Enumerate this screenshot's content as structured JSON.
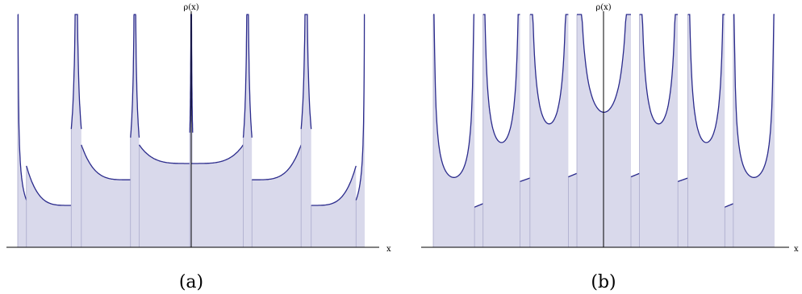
{
  "chart_data": [
    {
      "type": "area",
      "caption": "(a)",
      "xlabel": "x",
      "ylabel": "ρ(x)",
      "xlim": [
        -6.25,
        6.25
      ],
      "ylim": [
        0,
        10
      ],
      "grid": false,
      "fill_color": "#d9d9eb",
      "line_color": "#2b2b8c",
      "band_divider_color": "#aaaacc",
      "bands": [
        {
          "x0": -6.0,
          "x1": -5.7,
          "shape": "edge-spike",
          "apex": 5.9
        },
        {
          "x0": -5.7,
          "x1": -4.15,
          "shape": "u",
          "left": 3.5,
          "min": 1.8
        },
        {
          "x0": -4.15,
          "x1": -3.8,
          "shape": "cusp",
          "apex": 9.7
        },
        {
          "x0": -3.8,
          "x1": -2.1,
          "shape": "u",
          "left": 4.4,
          "min": 2.9
        },
        {
          "x0": -2.1,
          "x1": -1.8,
          "shape": "cusp",
          "apex": 9.0
        },
        {
          "x0": -1.8,
          "x1": 0.0,
          "shape": "u",
          "left": 4.4,
          "min": 3.6
        },
        {
          "x0": -0.05,
          "x1": 0.05,
          "shape": "cusp",
          "apex": 9.4
        },
        {
          "x0": 0.0,
          "x1": 1.8,
          "shape": "u",
          "left": 3.6,
          "min": 3.6,
          "right": 4.4
        },
        {
          "x0": 1.8,
          "x1": 2.1,
          "shape": "cusp",
          "apex": 9.0
        },
        {
          "x0": 2.1,
          "x1": 3.8,
          "shape": "u",
          "left": 2.9,
          "min": 2.9,
          "right": 4.4
        },
        {
          "x0": 3.8,
          "x1": 4.15,
          "shape": "cusp",
          "apex": 9.7
        },
        {
          "x0": 4.15,
          "x1": 5.7,
          "shape": "u",
          "left": 1.8,
          "min": 1.8,
          "right": 3.5
        },
        {
          "x0": 5.7,
          "x1": 6.0,
          "shape": "edge-spike-right",
          "apex": 5.9
        }
      ]
    },
    {
      "type": "area",
      "caption": "(b)",
      "xlabel": "x",
      "ylabel": "ρ(x)",
      "xlim": [
        -6.25,
        6.25
      ],
      "ylim": [
        0,
        10
      ],
      "grid": false,
      "fill_color": "#d9d9eb",
      "line_color": "#2b2b8c",
      "band_divider_color": "#aaaacc",
      "bands": [
        {
          "x0": -6.0,
          "x1": -4.55,
          "shape": "u",
          "min": 3.0
        },
        {
          "x0": -4.55,
          "x1": -4.25,
          "shape": "ledge",
          "level": 1.8
        },
        {
          "x0": -4.25,
          "x1": -2.95,
          "shape": "u",
          "min": 4.5
        },
        {
          "x0": -2.95,
          "x1": -2.6,
          "shape": "ledge",
          "level": 2.9
        },
        {
          "x0": -2.6,
          "x1": -1.25,
          "shape": "u",
          "min": 5.3
        },
        {
          "x0": -1.25,
          "x1": -0.95,
          "shape": "ledge",
          "level": 3.1
        },
        {
          "x0": -0.95,
          "x1": 0.95,
          "shape": "u",
          "min": 5.8
        },
        {
          "x0": 0.95,
          "x1": 1.25,
          "shape": "ledge",
          "level": 3.1
        },
        {
          "x0": 1.25,
          "x1": 2.6,
          "shape": "u",
          "min": 5.3
        },
        {
          "x0": 2.6,
          "x1": 2.95,
          "shape": "ledge",
          "level": 2.9
        },
        {
          "x0": 2.95,
          "x1": 4.25,
          "shape": "u",
          "min": 4.5
        },
        {
          "x0": 4.25,
          "x1": 4.55,
          "shape": "ledge",
          "level": 1.8
        },
        {
          "x0": 4.55,
          "x1": 6.0,
          "shape": "u",
          "min": 3.0
        }
      ]
    }
  ]
}
